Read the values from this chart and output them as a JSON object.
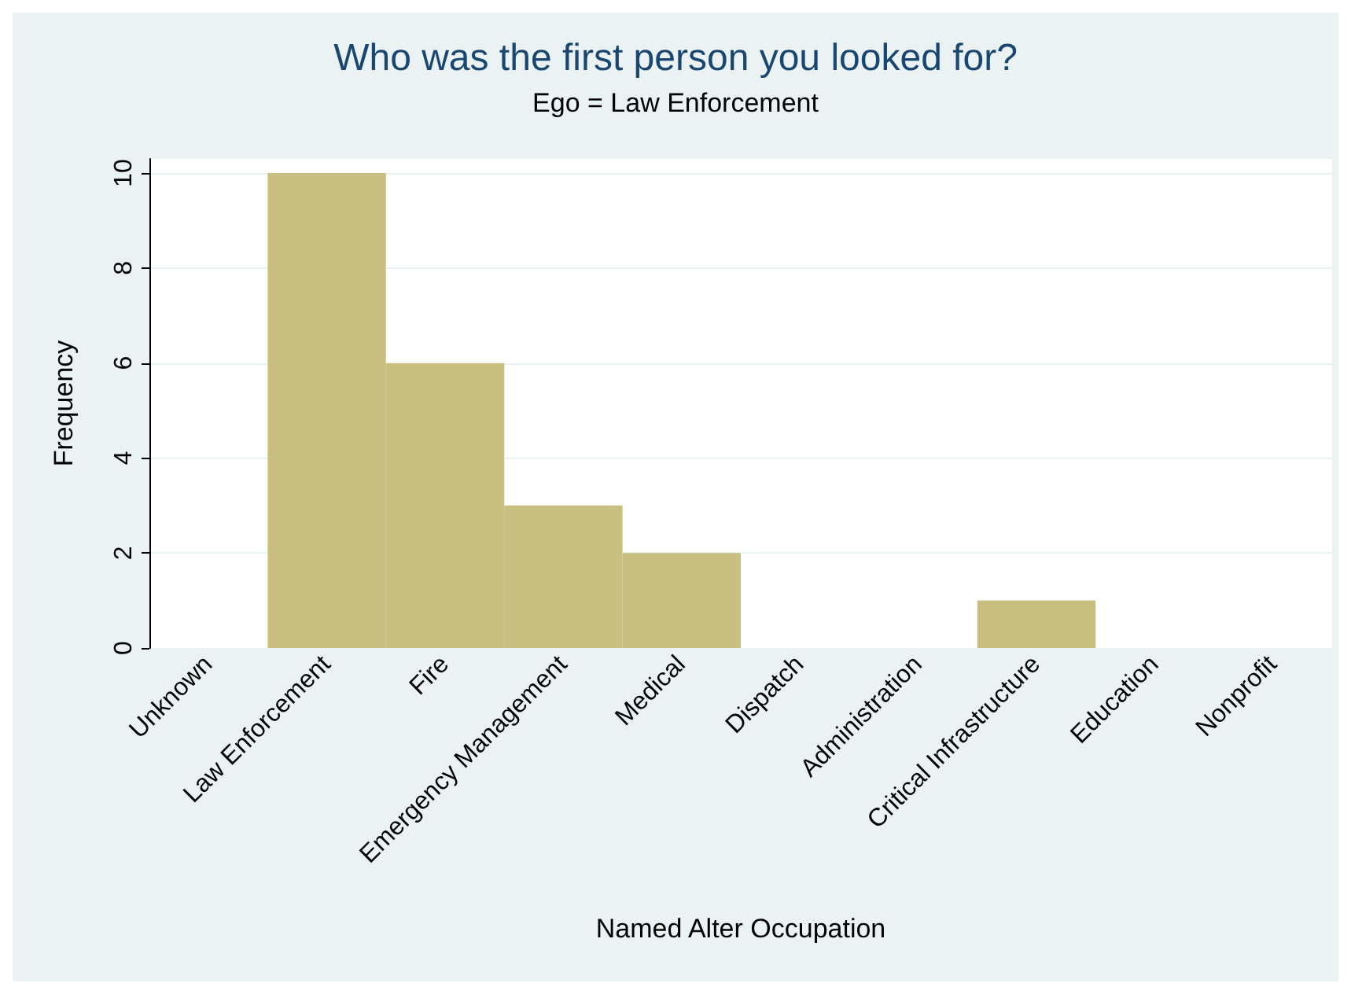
{
  "chart_data": {
    "type": "bar",
    "title": "Who was the first person you looked for?",
    "subtitle": "Ego = Law Enforcement",
    "xlabel": "Named Alter Occupation",
    "ylabel": "Frequency",
    "categories": [
      "Unknown",
      "Law Enforcement",
      "Fire",
      "Emergency Management",
      "Medical",
      "Dispatch",
      "Administration",
      "Critical Infrastructure",
      "Education",
      "Nonprofit"
    ],
    "values": [
      0,
      10,
      6,
      3,
      2,
      0,
      0,
      1,
      0,
      0
    ],
    "color": "#c9bf80",
    "ylim": [
      0,
      10.3
    ],
    "yticks": [
      0,
      2,
      4,
      6,
      8,
      10
    ],
    "grid": "y"
  }
}
